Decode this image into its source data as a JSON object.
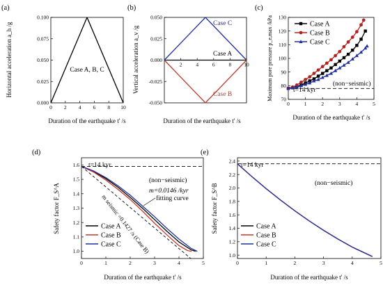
{
  "panels": [
    {
      "label": "(a)"
    },
    {
      "label": "(b)"
    },
    {
      "label": "(c)"
    },
    {
      "label": "(d)"
    },
    {
      "label": "(e)"
    }
  ],
  "chart_data": [
    {
      "id": "a",
      "type": "line",
      "xlabel": "Duration of the earthquake t' /s",
      "ylabel": "Horizontal acceleration a_h /g",
      "xlim": [
        0,
        10
      ],
      "ylim": [
        0,
        0.1
      ],
      "xticks": [
        "0",
        "2",
        "4",
        "6",
        "8",
        "10"
      ],
      "yticks": [
        "0.000",
        "0.025",
        "0.050",
        "0.075",
        "0.100"
      ],
      "annotations": [
        "Case A, B, C"
      ],
      "series": [
        {
          "color": "#000000",
          "x": [
            0,
            5,
            10
          ],
          "y": [
            0,
            0.1,
            0
          ]
        }
      ]
    },
    {
      "id": "b",
      "type": "line",
      "xlabel": "Duration of the earthquake t' /s",
      "ylabel": "Vertical acceleration a_v /g",
      "xlim": [
        0,
        10
      ],
      "ylim": [
        -0.05,
        0.05
      ],
      "xticks": [
        "2",
        "4",
        "6",
        "8",
        "10"
      ],
      "yticks": [
        "-0.050",
        "-0.025",
        "0.000",
        "0.025",
        "0.050"
      ],
      "series": [
        {
          "name": "Case A",
          "color": "#000000",
          "x": [
            0,
            10
          ],
          "y": [
            0,
            0
          ]
        },
        {
          "name": "Case B",
          "color": "#c0392b",
          "x": [
            0,
            5,
            10
          ],
          "y": [
            0,
            -0.05,
            0
          ]
        },
        {
          "name": "Case C",
          "color": "#1f2f9f",
          "x": [
            0,
            5,
            10
          ],
          "y": [
            0,
            0.05,
            0
          ]
        }
      ]
    },
    {
      "id": "c",
      "type": "line",
      "xlabel": "Duration of the earthquake t' /s",
      "ylabel": "Maximum pore pressure p_e,max /kPa",
      "xlim": [
        0,
        5
      ],
      "ylim": [
        70,
        130
      ],
      "xticks": [
        "0",
        "1",
        "2",
        "3",
        "4",
        "5"
      ],
      "yticks": [
        "70",
        "80",
        "90",
        "100",
        "110",
        "120",
        "130"
      ],
      "annotations": [
        "t=14 kyr",
        "(non−seismic)"
      ],
      "reference_line": {
        "y": 78,
        "style": "dashed"
      },
      "legend": "top-left",
      "series": [
        {
          "name": "Case A",
          "color": "#000000",
          "marker": "square",
          "x": [
            0,
            0.25,
            0.5,
            0.75,
            1.0,
            1.25,
            1.5,
            1.75,
            2.0,
            2.25,
            2.5,
            2.75,
            3.0,
            3.25,
            3.5,
            3.75,
            4.0,
            4.25,
            4.5
          ],
          "y": [
            78,
            78.5,
            79.5,
            80.5,
            82,
            83.5,
            85,
            87,
            89,
            91,
            93,
            95.5,
            98,
            100.5,
            103,
            106,
            109.5,
            114,
            120
          ]
        },
        {
          "name": "Case B",
          "color": "#b22222",
          "marker": "circle",
          "x": [
            0,
            0.25,
            0.5,
            0.75,
            1.0,
            1.25,
            1.5,
            1.75,
            2.0,
            2.25,
            2.5,
            2.75,
            3.0,
            3.25,
            3.5,
            3.75,
            4.0,
            4.25,
            4.4
          ],
          "y": [
            78,
            79,
            80.5,
            82.5,
            84.5,
            86.5,
            89,
            91.5,
            94,
            96.5,
            99,
            102,
            105,
            108.5,
            112,
            115.5,
            119.5,
            124.5,
            128
          ]
        },
        {
          "name": "Case C",
          "color": "#1f2f9f",
          "marker": "triangle",
          "x": [
            0,
            0.25,
            0.5,
            0.75,
            1.0,
            1.25,
            1.5,
            1.75,
            2.0,
            2.25,
            2.5,
            2.75,
            3.0,
            3.25,
            3.5,
            3.75,
            4.0,
            4.25,
            4.5,
            4.6
          ],
          "y": [
            78,
            78.5,
            79,
            80,
            81,
            82,
            83.5,
            84.5,
            86,
            87.5,
            89,
            91,
            93,
            95,
            97,
            99.5,
            102,
            104.5,
            107.5,
            109
          ]
        }
      ]
    },
    {
      "id": "d",
      "type": "line",
      "xlabel": "Duration of the earthquake t' /s",
      "ylabel": "Safety factor F_S^A",
      "xlim": [
        0,
        5
      ],
      "ylim": [
        0.95,
        1.65
      ],
      "xticks": [
        "0",
        "1",
        "2",
        "3",
        "4",
        "5"
      ],
      "yticks": [
        "1.0",
        "1.1",
        "1.2",
        "1.3",
        "1.4",
        "1.5",
        "1.6"
      ],
      "annotations": [
        "t=14 kyr",
        "(non−seismic)",
        "m=0.0146 /kyr",
        "m seismic =0.1427 /s (Case B)",
        "fitting curve"
      ],
      "reference_line": {
        "y": 1.59,
        "style": "dashed"
      },
      "legend": "bottom-left",
      "series": [
        {
          "name": "Case A",
          "color": "#000000",
          "x": [
            0,
            0.5,
            1.0,
            1.5,
            2.0,
            2.5,
            3.0,
            3.5,
            4.0,
            4.5,
            4.68
          ],
          "y": [
            1.59,
            1.555,
            1.505,
            1.445,
            1.375,
            1.3,
            1.22,
            1.14,
            1.065,
            1.01,
            1.0
          ]
        },
        {
          "name": "Case B",
          "color": "#c0392b",
          "x": [
            0,
            0.5,
            1.0,
            1.5,
            2.0,
            2.5,
            3.0,
            3.5,
            4.0,
            4.35,
            4.52
          ],
          "y": [
            1.59,
            1.55,
            1.495,
            1.43,
            1.36,
            1.28,
            1.195,
            1.115,
            1.04,
            1.005,
            1.0
          ]
        },
        {
          "name": "Case C",
          "color": "#1f2f9f",
          "x": [
            0,
            0.5,
            1.0,
            1.5,
            2.0,
            2.5,
            3.0,
            3.5,
            4.0,
            4.5,
            4.75
          ],
          "y": [
            1.59,
            1.558,
            1.512,
            1.455,
            1.39,
            1.315,
            1.24,
            1.16,
            1.085,
            1.02,
            1.0
          ]
        },
        {
          "name": "fitting curve",
          "color": "#000000",
          "dashed": true,
          "x": [
            0,
            4.52
          ],
          "y": [
            1.59,
            0.945
          ]
        }
      ]
    },
    {
      "id": "e",
      "type": "line",
      "xlabel": "Duration of the earthquake t' /s",
      "ylabel": "Safety factor F_S^B",
      "xlim": [
        0,
        5
      ],
      "ylim": [
        0.95,
        2.45
      ],
      "xticks": [
        "0",
        "1",
        "2",
        "3",
        "4",
        "5"
      ],
      "yticks": [
        "1.0",
        "1.2",
        "1.4",
        "1.6",
        "1.8",
        "2.0",
        "2.2",
        "2.4"
      ],
      "annotations": [
        "t=14 kyr",
        "(non−seismic)"
      ],
      "reference_line": {
        "y": 2.36,
        "style": "dashed"
      },
      "legend": "bottom-left",
      "series": [
        {
          "name": "Case A",
          "color": "#000000",
          "x": [
            0,
            0.5,
            1.0,
            1.5,
            2.0,
            2.5,
            3.0,
            3.5,
            4.0,
            4.5,
            4.7
          ],
          "y": [
            2.36,
            2.17,
            1.99,
            1.82,
            1.66,
            1.51,
            1.37,
            1.24,
            1.12,
            1.02,
            0.98
          ]
        },
        {
          "name": "Case B",
          "color": "#c0392b",
          "x": [
            0,
            0.5,
            1.0,
            1.5,
            2.0,
            2.5,
            3.0,
            3.5,
            4.0,
            4.5,
            4.7
          ],
          "y": [
            2.36,
            2.17,
            1.99,
            1.82,
            1.66,
            1.51,
            1.37,
            1.24,
            1.12,
            1.02,
            0.98
          ]
        },
        {
          "name": "Case C",
          "color": "#1f2f9f",
          "x": [
            0,
            0.5,
            1.0,
            1.5,
            2.0,
            2.5,
            3.0,
            3.5,
            4.0,
            4.5,
            4.7
          ],
          "y": [
            2.36,
            2.17,
            1.99,
            1.82,
            1.66,
            1.51,
            1.37,
            1.24,
            1.12,
            1.02,
            0.98
          ]
        }
      ]
    }
  ]
}
